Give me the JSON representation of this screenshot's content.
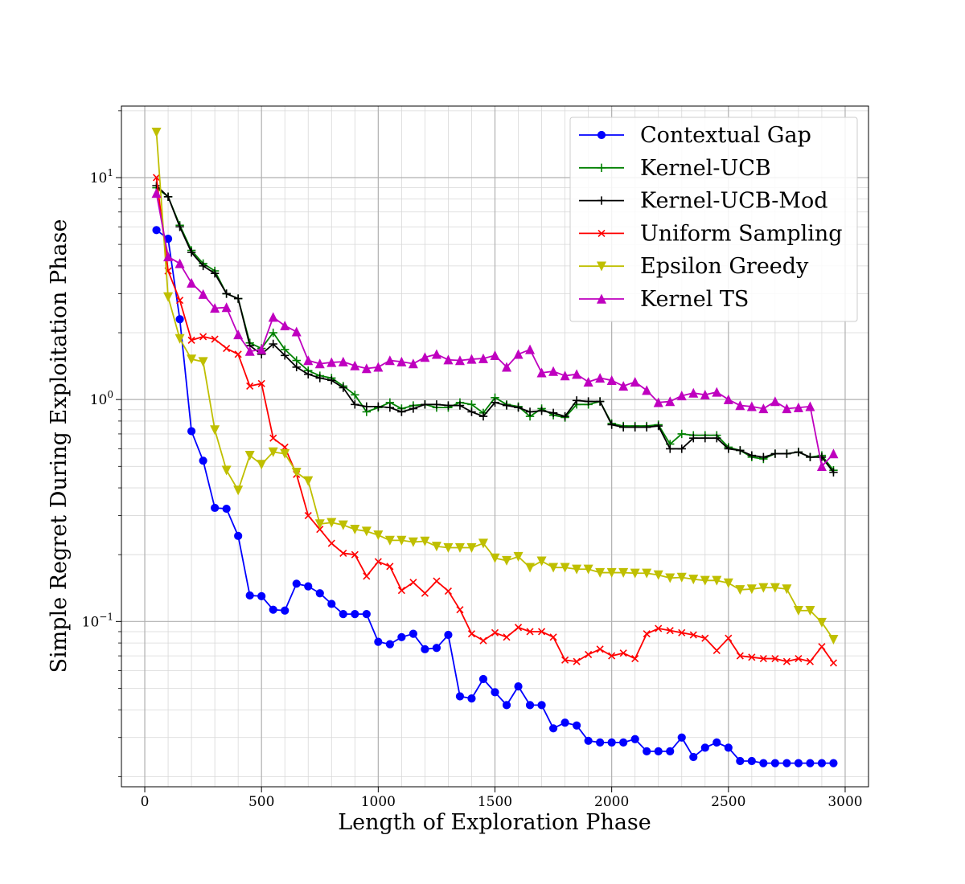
{
  "chart_data": {
    "type": "line",
    "title": "",
    "xlabel": "Length of Exploration Phase",
    "ylabel": "Simple Regret During Exploitation Phase",
    "xlim": [
      -100,
      3100
    ],
    "ylim": [
      0.018,
      21
    ],
    "yscale": "log",
    "grid": true,
    "legend_position": "top-right",
    "xticks": [
      0,
      500,
      1000,
      1500,
      2000,
      2500,
      3000
    ],
    "xtick_labels": [
      "0",
      "500",
      "1000",
      "1500",
      "2000",
      "2500",
      "3000"
    ],
    "yticks": [
      {
        "value": 10,
        "base": "10",
        "exp": "1"
      },
      {
        "value": 1,
        "base": "10",
        "exp": "0"
      },
      {
        "value": 0.1,
        "base": "10",
        "exp": "−1"
      }
    ],
    "x": [
      50,
      100,
      150,
      200,
      250,
      300,
      350,
      400,
      450,
      500,
      550,
      600,
      650,
      700,
      750,
      800,
      850,
      900,
      950,
      1000,
      1050,
      1100,
      1150,
      1200,
      1250,
      1300,
      1350,
      1400,
      1450,
      1500,
      1550,
      1600,
      1650,
      1700,
      1750,
      1800,
      1850,
      1900,
      1950,
      2000,
      2050,
      2100,
      2150,
      2200,
      2250,
      2300,
      2350,
      2400,
      2450,
      2500,
      2550,
      2600,
      2650,
      2700,
      2750,
      2800,
      2850,
      2900,
      2950
    ],
    "series": [
      {
        "name": "Contextual Gap",
        "color": "#0000ff",
        "marker": "circle",
        "values": [
          5.8,
          5.3,
          2.3,
          0.72,
          0.53,
          0.325,
          0.322,
          0.243,
          0.131,
          0.13,
          0.113,
          0.112,
          0.148,
          0.144,
          0.134,
          0.12,
          0.108,
          0.108,
          0.108,
          0.081,
          0.079,
          0.085,
          0.088,
          0.075,
          0.076,
          0.087,
          0.046,
          0.045,
          0.055,
          0.048,
          0.042,
          0.051,
          0.042,
          0.042,
          0.033,
          0.035,
          0.034,
          0.029,
          0.0285,
          0.0285,
          0.0285,
          0.0295,
          0.026,
          0.026,
          0.026,
          0.03,
          0.0245,
          0.027,
          0.0285,
          0.027,
          0.0235,
          0.0235,
          0.023,
          0.023,
          0.023,
          0.023,
          0.023,
          0.023,
          0.023
        ]
      },
      {
        "name": "Kernel-UCB",
        "color": "#008000",
        "marker": "plus",
        "values": [
          9.0,
          8.2,
          6.1,
          4.7,
          4.1,
          3.8,
          3.0,
          2.85,
          1.8,
          1.7,
          2.0,
          1.68,
          1.5,
          1.35,
          1.28,
          1.25,
          1.15,
          1.05,
          0.88,
          0.92,
          0.97,
          0.91,
          0.94,
          0.95,
          0.92,
          0.92,
          0.97,
          0.95,
          0.87,
          1.02,
          0.95,
          0.93,
          0.84,
          0.91,
          0.85,
          0.83,
          0.95,
          0.95,
          0.98,
          0.78,
          0.76,
          0.76,
          0.76,
          0.77,
          0.63,
          0.7,
          0.69,
          0.69,
          0.69,
          0.61,
          0.59,
          0.55,
          0.54,
          0.57,
          0.57,
          0.58,
          0.55,
          0.56,
          0.48
        ]
      },
      {
        "name": "Kernel-UCB-Mod",
        "color": "#000000",
        "marker": "plus",
        "values": [
          9.2,
          8.2,
          6.0,
          4.6,
          4.0,
          3.7,
          3.0,
          2.85,
          1.75,
          1.6,
          1.78,
          1.58,
          1.4,
          1.3,
          1.25,
          1.22,
          1.13,
          0.95,
          0.93,
          0.93,
          0.92,
          0.88,
          0.91,
          0.95,
          0.95,
          0.94,
          0.94,
          0.88,
          0.84,
          0.97,
          0.94,
          0.92,
          0.88,
          0.89,
          0.87,
          0.84,
          0.99,
          0.98,
          0.98,
          0.77,
          0.75,
          0.75,
          0.75,
          0.76,
          0.6,
          0.6,
          0.67,
          0.67,
          0.67,
          0.6,
          0.59,
          0.56,
          0.55,
          0.57,
          0.57,
          0.58,
          0.55,
          0.55,
          0.47
        ]
      },
      {
        "name": "Uniform Sampling",
        "color": "#ff0000",
        "marker": "x",
        "values": [
          10.0,
          3.8,
          2.8,
          1.85,
          1.92,
          1.87,
          1.7,
          1.6,
          1.15,
          1.18,
          0.67,
          0.61,
          0.46,
          0.3,
          0.26,
          0.225,
          0.203,
          0.2,
          0.16,
          0.186,
          0.177,
          0.138,
          0.15,
          0.134,
          0.152,
          0.137,
          0.113,
          0.088,
          0.082,
          0.089,
          0.085,
          0.094,
          0.09,
          0.09,
          0.085,
          0.067,
          0.066,
          0.071,
          0.075,
          0.07,
          0.072,
          0.068,
          0.088,
          0.093,
          0.091,
          0.089,
          0.087,
          0.084,
          0.074,
          0.084,
          0.07,
          0.069,
          0.068,
          0.068,
          0.066,
          0.068,
          0.066,
          0.077,
          0.065
        ]
      },
      {
        "name": "Epsilon Greedy",
        "color": "#bfbf00",
        "marker": "triangle-down",
        "values": [
          16.0,
          2.9,
          1.88,
          1.52,
          1.48,
          0.73,
          0.48,
          0.39,
          0.56,
          0.51,
          0.58,
          0.57,
          0.47,
          0.43,
          0.275,
          0.279,
          0.272,
          0.26,
          0.255,
          0.245,
          0.232,
          0.232,
          0.228,
          0.23,
          0.218,
          0.215,
          0.215,
          0.215,
          0.225,
          0.193,
          0.188,
          0.196,
          0.175,
          0.187,
          0.175,
          0.175,
          0.172,
          0.172,
          0.166,
          0.166,
          0.166,
          0.165,
          0.165,
          0.162,
          0.157,
          0.158,
          0.155,
          0.153,
          0.153,
          0.149,
          0.139,
          0.14,
          0.142,
          0.142,
          0.14,
          0.112,
          0.112,
          0.099,
          0.083
        ]
      },
      {
        "name": "Kernel TS",
        "color": "#bf00bf",
        "marker": "triangle-up",
        "values": [
          8.5,
          4.4,
          4.1,
          3.35,
          2.98,
          2.58,
          2.6,
          1.96,
          1.65,
          1.68,
          2.35,
          2.15,
          2.02,
          1.5,
          1.45,
          1.47,
          1.48,
          1.42,
          1.38,
          1.4,
          1.5,
          1.48,
          1.45,
          1.55,
          1.6,
          1.51,
          1.5,
          1.52,
          1.53,
          1.58,
          1.4,
          1.6,
          1.68,
          1.32,
          1.34,
          1.28,
          1.3,
          1.2,
          1.25,
          1.22,
          1.15,
          1.2,
          1.1,
          0.97,
          0.98,
          1.04,
          1.07,
          1.05,
          1.08,
          1.0,
          0.94,
          0.93,
          0.91,
          0.98,
          0.91,
          0.92,
          0.93,
          0.5,
          0.57
        ]
      }
    ]
  }
}
